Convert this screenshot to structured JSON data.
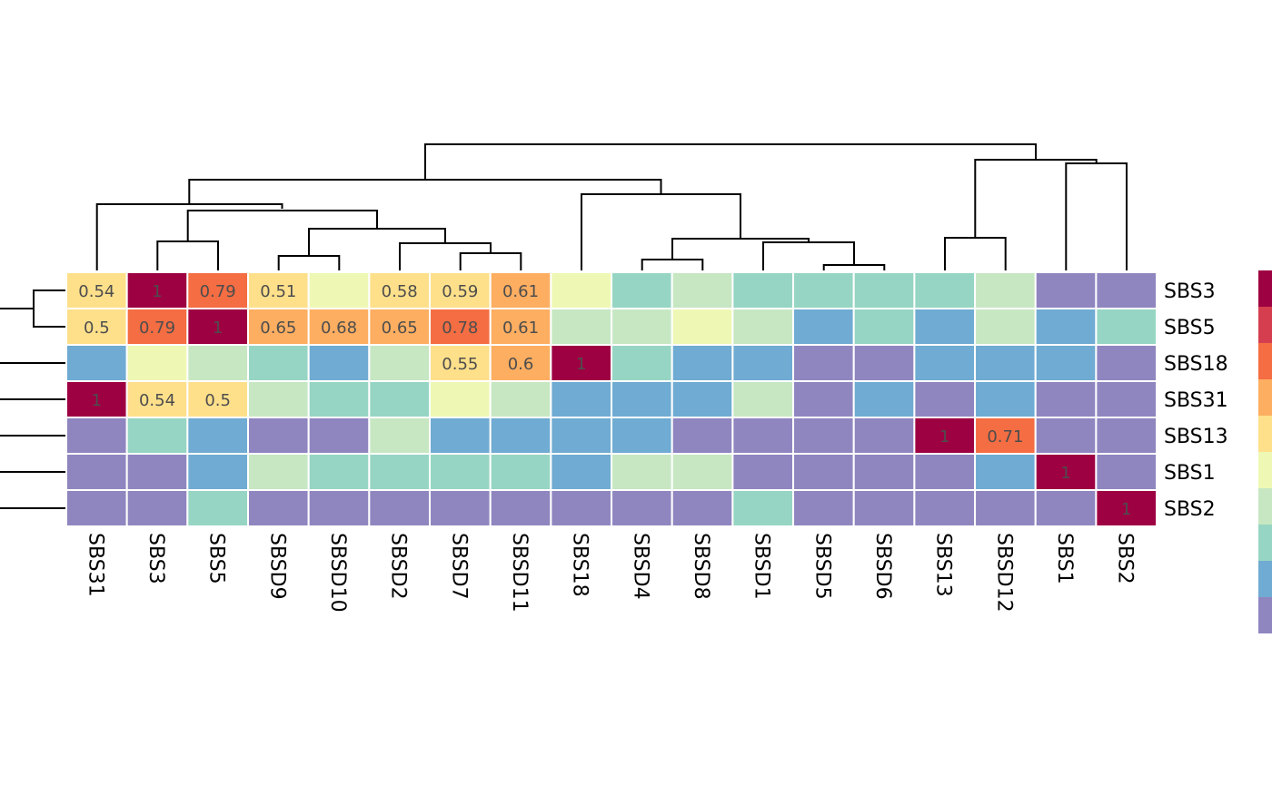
{
  "chart_data": {
    "type": "heatmap",
    "columns": [
      "SBS31",
      "SBS3",
      "SBS5",
      "SBSD9",
      "SBSD10",
      "SBSD2",
      "SBSD7",
      "SBSD11",
      "SBS18",
      "SBSD4",
      "SBSD8",
      "SBSD1",
      "SBSD5",
      "SBSD6",
      "SBS13",
      "SBSD12",
      "SBS1",
      "SBS2"
    ],
    "rows": [
      "SBS3",
      "SBS5",
      "SBS18",
      "SBS31",
      "SBS13",
      "SBS1",
      "SBS2"
    ],
    "values": [
      [
        0.54,
        1,
        0.79,
        0.51,
        0.45,
        0.58,
        0.59,
        0.61,
        0.45,
        0.25,
        0.35,
        0.25,
        0.25,
        0.25,
        0.25,
        0.35,
        0.05,
        0.05
      ],
      [
        0.5,
        0.79,
        1,
        0.65,
        0.68,
        0.65,
        0.78,
        0.61,
        0.35,
        0.35,
        0.45,
        0.35,
        0.15,
        0.25,
        0.15,
        0.35,
        0.15,
        0.25
      ],
      [
        0.15,
        0.45,
        0.35,
        0.25,
        0.15,
        0.35,
        0.55,
        0.6,
        1,
        0.25,
        0.15,
        0.15,
        0.05,
        0.05,
        0.15,
        0.15,
        0.15,
        0.05
      ],
      [
        1,
        0.54,
        0.5,
        0.35,
        0.25,
        0.25,
        0.45,
        0.35,
        0.15,
        0.15,
        0.15,
        0.35,
        0.05,
        0.15,
        0.05,
        0.15,
        0.05,
        0.05
      ],
      [
        0.05,
        0.25,
        0.15,
        0.05,
        0.05,
        0.35,
        0.15,
        0.15,
        0.15,
        0.15,
        0.05,
        0.05,
        0.05,
        0.05,
        1,
        0.71,
        0.05,
        0.05
      ],
      [
        0.05,
        0.05,
        0.15,
        0.35,
        0.25,
        0.25,
        0.25,
        0.25,
        0.15,
        0.35,
        0.35,
        0.05,
        0.05,
        0.05,
        0.05,
        0.15,
        1,
        0.05
      ],
      [
        0.05,
        0.05,
        0.25,
        0.05,
        0.05,
        0.05,
        0.05,
        0.05,
        0.05,
        0.05,
        0.05,
        0.25,
        0.05,
        0.05,
        0.05,
        0.05,
        0.05,
        1
      ]
    ],
    "cell_labels": [
      [
        "0.54",
        "1",
        "0.79",
        "0.51",
        "",
        "0.58",
        "0.59",
        "0.61",
        "",
        "",
        "",
        "",
        "",
        "",
        "",
        "",
        "",
        ""
      ],
      [
        "0.5",
        "0.79",
        "1",
        "0.65",
        "0.68",
        "0.65",
        "0.78",
        "0.61",
        "",
        "",
        "",
        "",
        "",
        "",
        "",
        "",
        "",
        ""
      ],
      [
        "",
        "",
        "",
        "",
        "",
        "",
        "0.55",
        "0.6",
        "1",
        "",
        "",
        "",
        "",
        "",
        "",
        "",
        "",
        ""
      ],
      [
        "1",
        "0.54",
        "0.5",
        "",
        "",
        "",
        "",
        "",
        "",
        "",
        "",
        "",
        "",
        "",
        "",
        "",
        "",
        ""
      ],
      [
        "",
        "",
        "",
        "",
        "",
        "",
        "",
        "",
        "",
        "",
        "",
        "",
        "",
        "",
        "1",
        "0.71",
        "",
        ""
      ],
      [
        "",
        "",
        "",
        "",
        "",
        "",
        "",
        "",
        "",
        "",
        "",
        "",
        "",
        "",
        "",
        "",
        "1",
        ""
      ],
      [
        "",
        "",
        "",
        "",
        "",
        "",
        "",
        "",
        "",
        "",
        "",
        "",
        "",
        "",
        "",
        "",
        "",
        "1"
      ]
    ],
    "palette": [
      "#8F86C0",
      "#6FABD2",
      "#96D5C3",
      "#C6E7C2",
      "#EEF8B4",
      "#FEE08B",
      "#FDAE61",
      "#F46D43",
      "#D53E4F",
      "#9E0142"
    ],
    "color_scale_range": [
      0,
      1
    ],
    "column_dendrogram": true,
    "row_dendrogram": true,
    "legend_placement": "right"
  }
}
